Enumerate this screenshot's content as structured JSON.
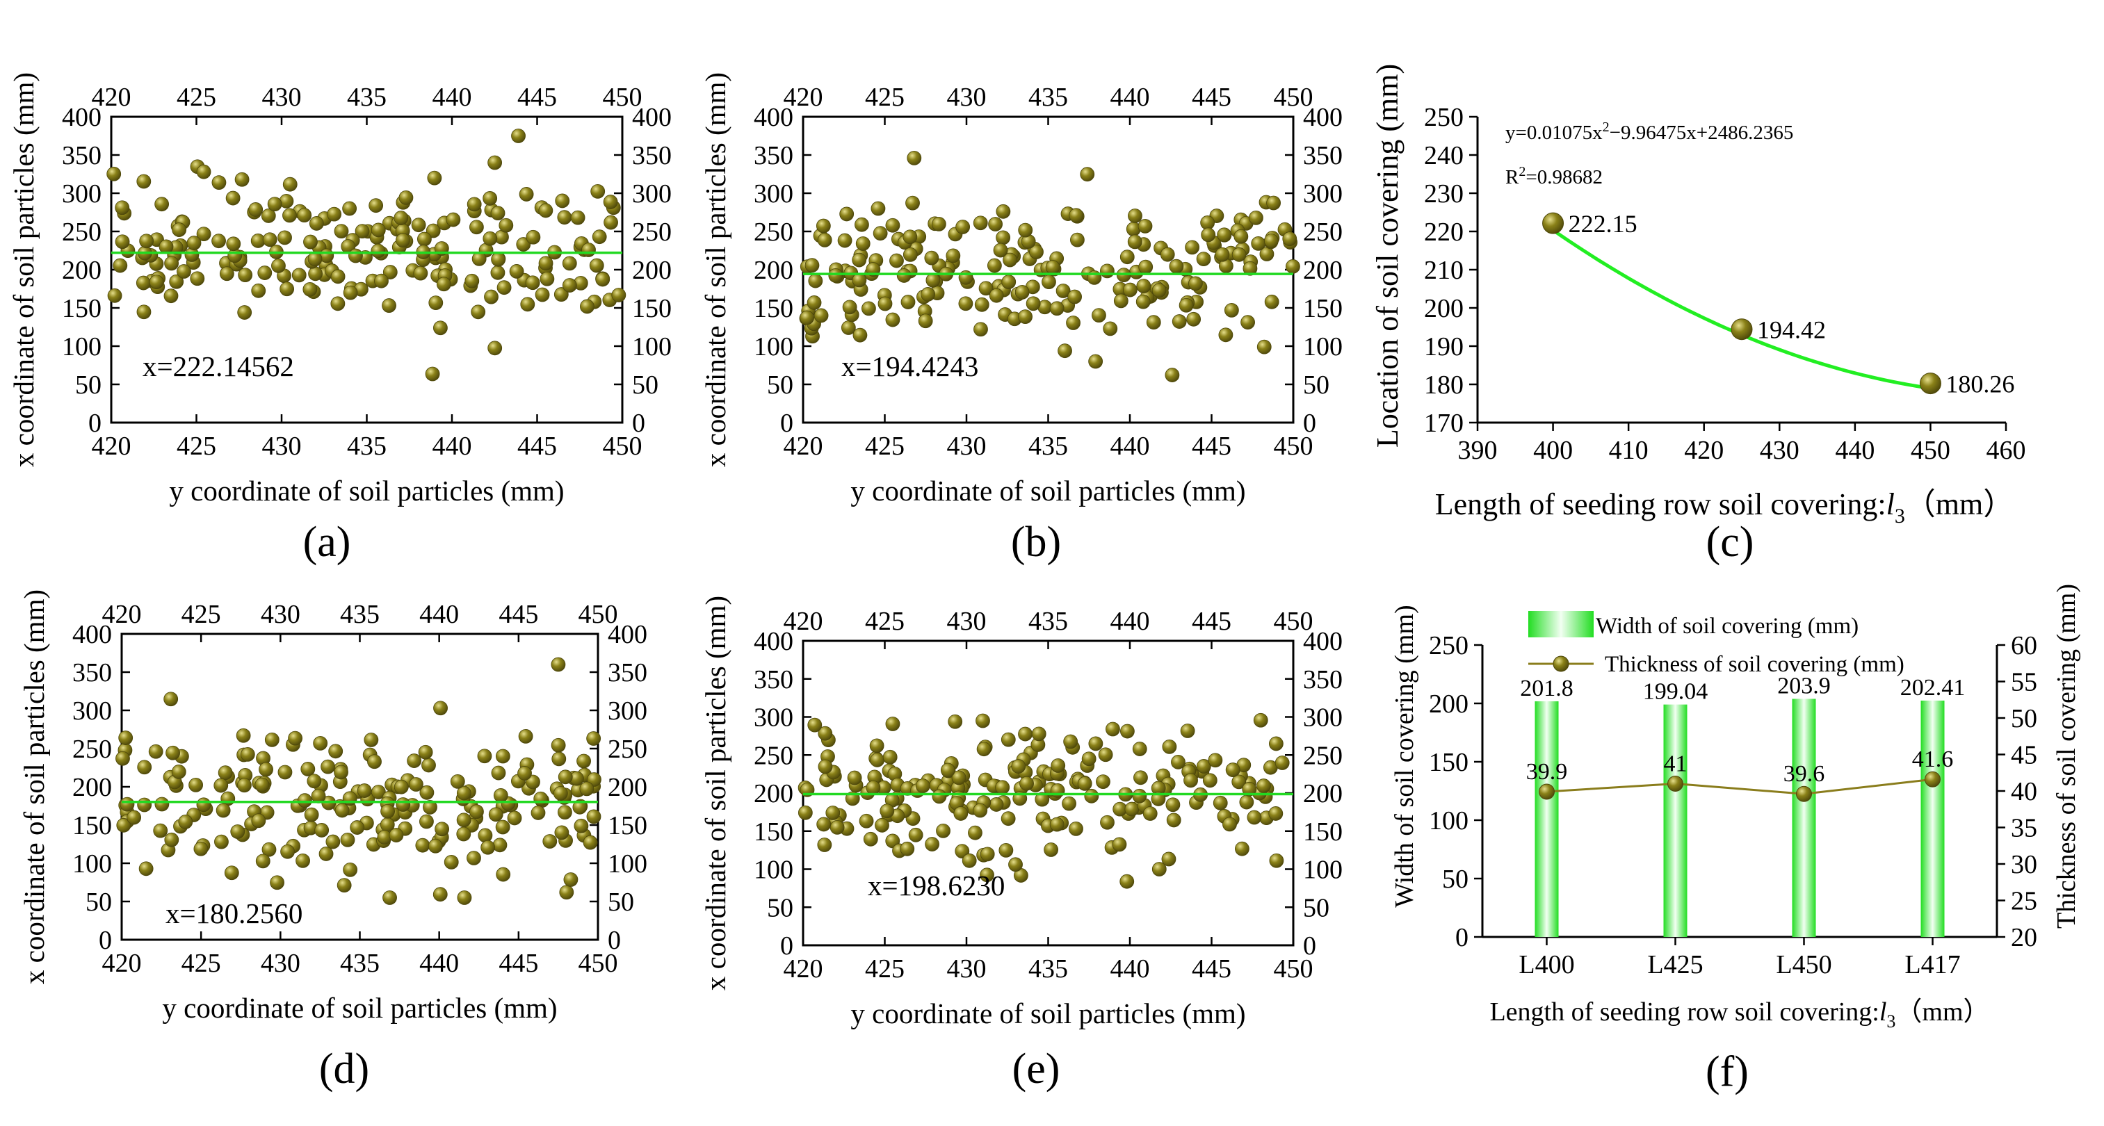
{
  "chart_data": [
    {
      "id": "a",
      "type": "scatter",
      "panel_label": "(a)",
      "xlabel": "y coordinate of soil particles (mm)",
      "ylabel": "x coordinate of soil particles (mm)",
      "xlim": [
        420,
        450
      ],
      "ylim": [
        0,
        400
      ],
      "xticks": [
        420,
        425,
        430,
        435,
        440,
        445,
        450
      ],
      "yticks": [
        0,
        50,
        100,
        150,
        200,
        250,
        300,
        350,
        400
      ],
      "mirror_axes": true,
      "n_points": 200,
      "seed": 11,
      "mean": 222.14562,
      "spread": 42,
      "outliers": [
        [
          443.9,
          375
        ]
      ],
      "annotation": "x=222.14562"
    },
    {
      "id": "b",
      "type": "scatter",
      "panel_label": "(b)",
      "xlabel": "y coordinate of soil particles (mm)",
      "ylabel": "x coordinate of soil particles (mm)",
      "xlim": [
        420,
        450
      ],
      "ylim": [
        0,
        400
      ],
      "xticks": [
        420,
        425,
        430,
        435,
        440,
        445,
        450
      ],
      "yticks": [
        0,
        50,
        100,
        150,
        200,
        250,
        300,
        350,
        400
      ],
      "mirror_axes": true,
      "n_points": 200,
      "seed": 23,
      "mean": 194.4243,
      "spread": 45,
      "outliers": [
        [
          426.8,
          346
        ],
        [
          437.9,
          80
        ]
      ],
      "annotation": "x=194.4243"
    },
    {
      "id": "c",
      "type": "line",
      "panel_label": "(c)",
      "xlabel": "Length of seeding row soil covering:",
      "xlabel_var": "l",
      "xlabel_sub": "3",
      "xlabel_unit": "（mm）",
      "ylabel": "Location of soil covering (mm)",
      "xlim": [
        390,
        460
      ],
      "ylim": [
        170,
        250
      ],
      "xticks": [
        390,
        400,
        410,
        420,
        430,
        440,
        450,
        460
      ],
      "yticks": [
        170,
        180,
        190,
        200,
        210,
        220,
        230,
        240,
        250
      ],
      "x": [
        400,
        425,
        450
      ],
      "y": [
        222.15,
        194.42,
        180.26
      ],
      "point_labels": [
        "222.15",
        "194.42",
        "180.26"
      ],
      "fit": {
        "a": 0.01075,
        "b": -9.96475,
        "c": 2486.2365
      },
      "equation_prefix": "y=0.01075x",
      "equation_sup": "2",
      "equation_suffix": "−9.96475x+2486.2365",
      "r2_prefix": "R",
      "r2_sup": "2",
      "r2_suffix": "=0.98682"
    },
    {
      "id": "d",
      "type": "scatter",
      "panel_label": "(d)",
      "xlabel": "y coordinate of soil particles (mm)",
      "ylabel": "x coordinate of soil particles (mm)",
      "xlim": [
        420,
        450
      ],
      "ylim": [
        0,
        400
      ],
      "xticks": [
        420,
        425,
        430,
        435,
        440,
        445,
        450
      ],
      "yticks": [
        0,
        50,
        100,
        150,
        200,
        250,
        300,
        350,
        400
      ],
      "mirror_axes": true,
      "n_points": 200,
      "seed": 37,
      "mean": 180.256,
      "spread": 48,
      "outliers": [
        [
          447.5,
          360
        ]
      ],
      "annotation": "x=180.2560"
    },
    {
      "id": "e",
      "type": "scatter",
      "panel_label": "(e)",
      "xlabel": "y coordinate of soil particles (mm)",
      "ylabel": "x coordinate of soil particles (mm)",
      "xlim": [
        420,
        450
      ],
      "ylim": [
        0,
        400
      ],
      "xticks": [
        420,
        425,
        430,
        435,
        440,
        445,
        450
      ],
      "yticks": [
        0,
        50,
        100,
        150,
        200,
        250,
        300,
        350,
        400
      ],
      "mirror_axes": true,
      "n_points": 200,
      "seed": 53,
      "mean": 198.623,
      "spread": 40,
      "outliers": [
        [
          431,
          295
        ],
        [
          441.8,
          100
        ]
      ],
      "annotation": "x=198.6230"
    },
    {
      "id": "f",
      "type": "bar+line",
      "panel_label": "(f)",
      "xlabel": "Length of seeding row soil covering:",
      "xlabel_var": "l",
      "xlabel_sub": "3",
      "xlabel_unit": "（mm）",
      "ylabel": "Width of soil covering (mm)",
      "ylabel_right": "Thickness of soil covering (mm)",
      "categories": [
        "L400",
        "L425",
        "L450",
        "L417"
      ],
      "ylim": [
        0,
        250
      ],
      "yticks": [
        0,
        50,
        100,
        150,
        200,
        250
      ],
      "ylim_right": [
        20,
        60
      ],
      "yticks_right": [
        20,
        25,
        30,
        35,
        40,
        45,
        50,
        55,
        60
      ],
      "series": [
        {
          "name": "Width of soil covering (mm)",
          "axis": "left",
          "kind": "bar",
          "values": [
            201.8,
            199.04,
            203.9,
            202.41
          ],
          "labels": [
            "201.8",
            "199.04",
            "203.9",
            "202.41"
          ]
        },
        {
          "name": "Thickness of soil covering (mm)",
          "axis": "right",
          "kind": "line",
          "values": [
            39.9,
            41,
            39.6,
            41.6
          ],
          "labels": [
            "39.9",
            "41",
            "39.6",
            "41.6"
          ]
        }
      ],
      "legend_position": "top"
    }
  ],
  "colors": {
    "marker": "#8a8118",
    "marker_highlight": "#e6df8c",
    "marker_dark": "#4d470a",
    "mean_line": "#22d922",
    "fit_line": "#22ee22",
    "bar_core": "#f2fff2",
    "bar_edge": "#22dd22",
    "thickness_line": "#8a7d1c",
    "axis": "#000000"
  }
}
